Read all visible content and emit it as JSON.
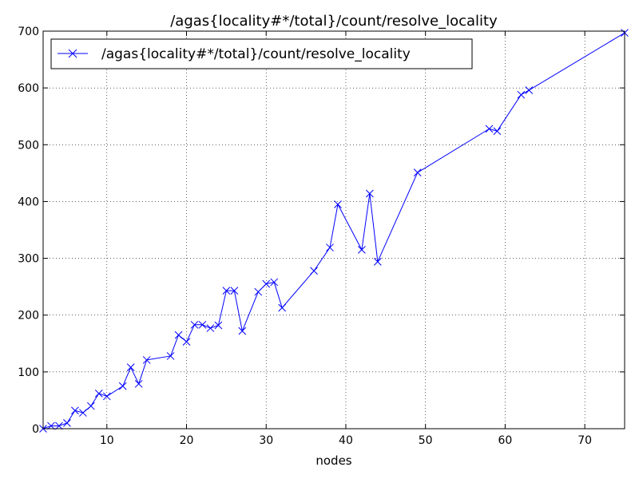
{
  "chart_data": {
    "type": "line",
    "title": "/agas{locality#*/total}/count/resolve_locality",
    "xlabel": "nodes",
    "ylabel": "",
    "xlim": [
      2,
      75
    ],
    "ylim": [
      0,
      700
    ],
    "xticks": [
      10,
      20,
      30,
      40,
      50,
      60,
      70
    ],
    "yticks": [
      0,
      100,
      200,
      300,
      400,
      500,
      600,
      700
    ],
    "grid": true,
    "legend_position": "top-left",
    "series": [
      {
        "name": "/agas{locality#*/total}/count/resolve_locality",
        "color": "#0000ff",
        "marker": "x",
        "points": [
          [
            2,
            0
          ],
          [
            3,
            5
          ],
          [
            4,
            5
          ],
          [
            5,
            10
          ],
          [
            6,
            32
          ],
          [
            7,
            28
          ],
          [
            8,
            40
          ],
          [
            9,
            62
          ],
          [
            10,
            57
          ],
          [
            12,
            75
          ],
          [
            13,
            108
          ],
          [
            14,
            79
          ],
          [
            15,
            121
          ],
          [
            18,
            128
          ],
          [
            19,
            165
          ],
          [
            20,
            153
          ],
          [
            21,
            183
          ],
          [
            22,
            183
          ],
          [
            23,
            177
          ],
          [
            24,
            182
          ],
          [
            25,
            243
          ],
          [
            26,
            243
          ],
          [
            27,
            172
          ],
          [
            29,
            241
          ],
          [
            30,
            255
          ],
          [
            31,
            258
          ],
          [
            32,
            213
          ],
          [
            36,
            278
          ],
          [
            38,
            319
          ],
          [
            39,
            395
          ],
          [
            42,
            315
          ],
          [
            43,
            414
          ],
          [
            44,
            294
          ],
          [
            49,
            451
          ],
          [
            58,
            528
          ],
          [
            59,
            524
          ],
          [
            62,
            588
          ],
          [
            63,
            596
          ],
          [
            75,
            697
          ]
        ]
      }
    ]
  }
}
